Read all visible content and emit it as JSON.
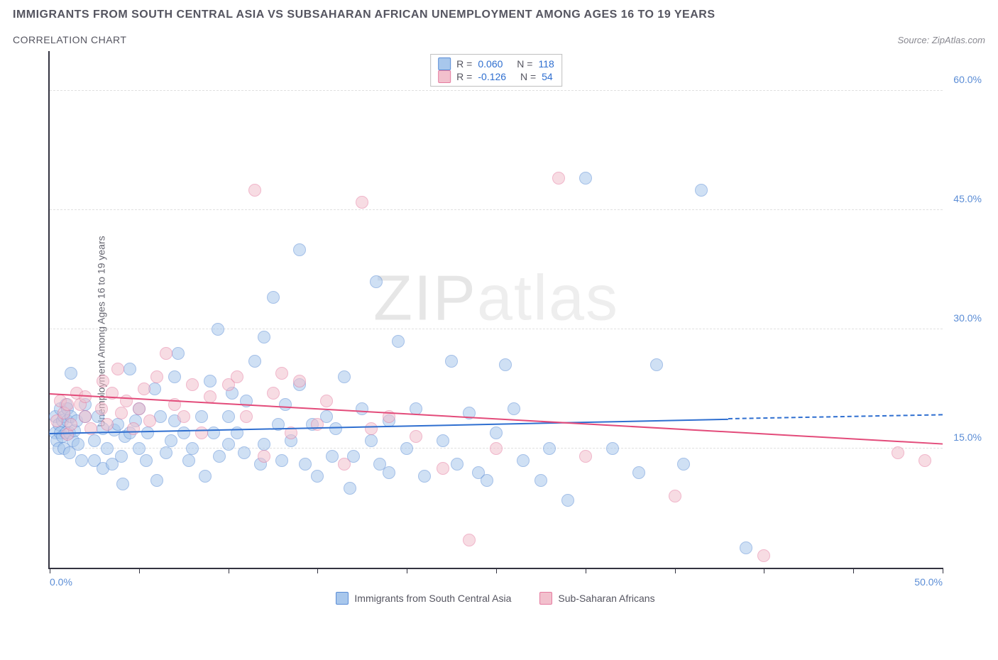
{
  "title": "IMMIGRANTS FROM SOUTH CENTRAL ASIA VS SUBSAHARAN AFRICAN UNEMPLOYMENT AMONG AGES 16 TO 19 YEARS",
  "subtitle": "CORRELATION CHART",
  "source": "Source: ZipAtlas.com",
  "ylabel": "Unemployment Among Ages 16 to 19 years",
  "watermark_a": "ZIP",
  "watermark_b": "atlas",
  "chart": {
    "type": "scatter",
    "xlim": [
      0,
      50
    ],
    "ylim": [
      0,
      65
    ],
    "xticks": [
      0,
      5,
      10,
      15,
      20,
      25,
      30,
      35,
      40,
      45,
      50
    ],
    "xtick_labels_shown": {
      "0": "0.0%",
      "50": "50.0%"
    },
    "yticks": [
      15,
      30,
      45,
      60
    ],
    "ytick_labels": {
      "15": "15.0%",
      "30": "30.0%",
      "45": "45.0%",
      "60": "60.0%"
    },
    "background_color": "#ffffff",
    "grid_color": "#e0e0e0",
    "marker_radius": 9,
    "marker_opacity": 0.55,
    "series": [
      {
        "name": "Immigrants from South Central Asia",
        "label": "Immigrants from South Central Asia",
        "color_fill": "#a8c7ec",
        "color_stroke": "#5b8dd6",
        "r_label": "R =",
        "r_value": "0.060",
        "n_label": "N =",
        "n_value": "118",
        "trend": {
          "x1": 0,
          "y1": 17.0,
          "x2": 38,
          "y2": 18.8,
          "x2_ext": 50,
          "y2_ext": 19.3,
          "color": "#2f6fd0"
        },
        "points": [
          [
            0.3,
            17
          ],
          [
            0.3,
            19
          ],
          [
            0.4,
            16
          ],
          [
            0.5,
            18
          ],
          [
            0.5,
            15
          ],
          [
            0.6,
            20
          ],
          [
            0.6,
            17
          ],
          [
            0.7,
            18.5
          ],
          [
            0.7,
            16.5
          ],
          [
            0.8,
            19
          ],
          [
            0.8,
            15
          ],
          [
            0.9,
            17
          ],
          [
            0.9,
            20.5
          ],
          [
            1.0,
            18.5
          ],
          [
            1.0,
            20
          ],
          [
            1.1,
            14.5
          ],
          [
            1.1,
            17
          ],
          [
            1.2,
            19
          ],
          [
            1.2,
            24.5
          ],
          [
            1.3,
            16
          ],
          [
            1.4,
            17.2
          ],
          [
            1.5,
            18.5
          ],
          [
            1.6,
            15.5
          ],
          [
            1.8,
            13.5
          ],
          [
            2.0,
            20.5
          ],
          [
            2.0,
            19
          ],
          [
            2.5,
            16
          ],
          [
            2.5,
            13.5
          ],
          [
            2.7,
            19
          ],
          [
            3.0,
            12.5
          ],
          [
            3.0,
            17.5
          ],
          [
            3.2,
            15
          ],
          [
            3.5,
            13
          ],
          [
            3.6,
            17.3
          ],
          [
            3.8,
            18
          ],
          [
            4.0,
            14
          ],
          [
            4.1,
            10.5
          ],
          [
            4.2,
            16.5
          ],
          [
            4.5,
            25
          ],
          [
            4.5,
            17
          ],
          [
            4.8,
            18.5
          ],
          [
            5.0,
            15
          ],
          [
            5.0,
            20
          ],
          [
            5.4,
            13.5
          ],
          [
            5.5,
            17
          ],
          [
            5.9,
            22.5
          ],
          [
            6.0,
            11
          ],
          [
            6.2,
            19
          ],
          [
            6.5,
            14.5
          ],
          [
            6.8,
            16
          ],
          [
            7.0,
            18.5
          ],
          [
            7.0,
            24
          ],
          [
            7.2,
            27
          ],
          [
            7.5,
            17
          ],
          [
            7.8,
            13.5
          ],
          [
            8.0,
            15
          ],
          [
            8.5,
            19
          ],
          [
            8.7,
            11.5
          ],
          [
            9.0,
            23.5
          ],
          [
            9.2,
            17
          ],
          [
            9.4,
            30
          ],
          [
            9.5,
            14
          ],
          [
            10.0,
            15.5
          ],
          [
            10.0,
            19
          ],
          [
            10.2,
            22
          ],
          [
            10.5,
            17
          ],
          [
            10.9,
            14.5
          ],
          [
            11.0,
            21
          ],
          [
            11.5,
            26
          ],
          [
            11.8,
            13
          ],
          [
            12.0,
            15.5
          ],
          [
            12.0,
            29
          ],
          [
            12.5,
            34
          ],
          [
            12.8,
            18
          ],
          [
            13.0,
            13.5
          ],
          [
            13.2,
            20.5
          ],
          [
            13.5,
            16
          ],
          [
            14.0,
            40
          ],
          [
            14.0,
            23
          ],
          [
            14.3,
            13
          ],
          [
            14.7,
            18
          ],
          [
            15.0,
            11.5
          ],
          [
            15.5,
            19
          ],
          [
            15.8,
            14
          ],
          [
            16.0,
            17.5
          ],
          [
            16.5,
            24
          ],
          [
            16.8,
            10
          ],
          [
            17.0,
            14
          ],
          [
            17.5,
            20
          ],
          [
            18.0,
            16
          ],
          [
            18.3,
            36
          ],
          [
            18.5,
            13
          ],
          [
            19.0,
            18.5
          ],
          [
            19.0,
            12
          ],
          [
            19.5,
            28.5
          ],
          [
            20.0,
            15
          ],
          [
            20.5,
            20
          ],
          [
            21.0,
            11.5
          ],
          [
            22.0,
            16
          ],
          [
            22.5,
            26
          ],
          [
            22.8,
            13
          ],
          [
            23.5,
            19.5
          ],
          [
            24.0,
            12
          ],
          [
            24.5,
            11
          ],
          [
            25.0,
            17
          ],
          [
            25.5,
            25.5
          ],
          [
            26.0,
            20
          ],
          [
            26.5,
            13.5
          ],
          [
            27.5,
            11
          ],
          [
            28.0,
            15
          ],
          [
            29.0,
            8.5
          ],
          [
            30.0,
            49
          ],
          [
            31.5,
            15
          ],
          [
            33.0,
            12
          ],
          [
            34.0,
            25.5
          ],
          [
            35.5,
            13
          ],
          [
            36.5,
            47.5
          ],
          [
            39.0,
            2.5
          ]
        ]
      },
      {
        "name": "Sub-Saharan Africans",
        "label": "Sub-Saharan Africans",
        "color_fill": "#f2c0cd",
        "color_stroke": "#e57ba0",
        "r_label": "R =",
        "r_value": "-0.126",
        "n_label": "N =",
        "n_value": "54",
        "trend": {
          "x1": 0,
          "y1": 22.0,
          "x2": 50,
          "y2": 15.7,
          "color": "#e34b7a"
        },
        "points": [
          [
            0.4,
            18.5
          ],
          [
            0.6,
            21
          ],
          [
            0.8,
            19.5
          ],
          [
            1.0,
            20.5
          ],
          [
            1.0,
            16.8
          ],
          [
            1.2,
            18
          ],
          [
            1.5,
            22
          ],
          [
            1.7,
            20.5
          ],
          [
            2.0,
            19
          ],
          [
            2.0,
            21.5
          ],
          [
            2.3,
            17.5
          ],
          [
            2.9,
            20
          ],
          [
            3.0,
            23.5
          ],
          [
            3.2,
            18
          ],
          [
            3.5,
            22
          ],
          [
            3.8,
            25
          ],
          [
            4.0,
            19.5
          ],
          [
            4.3,
            21
          ],
          [
            4.7,
            17.5
          ],
          [
            5.0,
            20
          ],
          [
            5.3,
            22.5
          ],
          [
            5.6,
            18.5
          ],
          [
            6.0,
            24
          ],
          [
            6.5,
            27
          ],
          [
            7.0,
            20.5
          ],
          [
            7.5,
            19
          ],
          [
            8.0,
            23
          ],
          [
            8.5,
            17
          ],
          [
            9.0,
            21.5
          ],
          [
            10.0,
            23
          ],
          [
            10.5,
            24
          ],
          [
            11.0,
            19
          ],
          [
            11.5,
            47.5
          ],
          [
            12.0,
            14
          ],
          [
            12.5,
            22
          ],
          [
            13.0,
            24.5
          ],
          [
            13.5,
            17
          ],
          [
            14.0,
            23.5
          ],
          [
            15.0,
            18
          ],
          [
            15.5,
            21
          ],
          [
            16.5,
            13
          ],
          [
            17.5,
            46
          ],
          [
            18.0,
            17.5
          ],
          [
            19.0,
            19
          ],
          [
            20.5,
            16.5
          ],
          [
            22.0,
            12.5
          ],
          [
            23.5,
            3.5
          ],
          [
            25.0,
            15
          ],
          [
            28.5,
            49
          ],
          [
            30.0,
            14
          ],
          [
            35.0,
            9
          ],
          [
            40.0,
            1.5
          ],
          [
            47.5,
            14.5
          ],
          [
            49.0,
            13.5
          ]
        ]
      }
    ]
  }
}
